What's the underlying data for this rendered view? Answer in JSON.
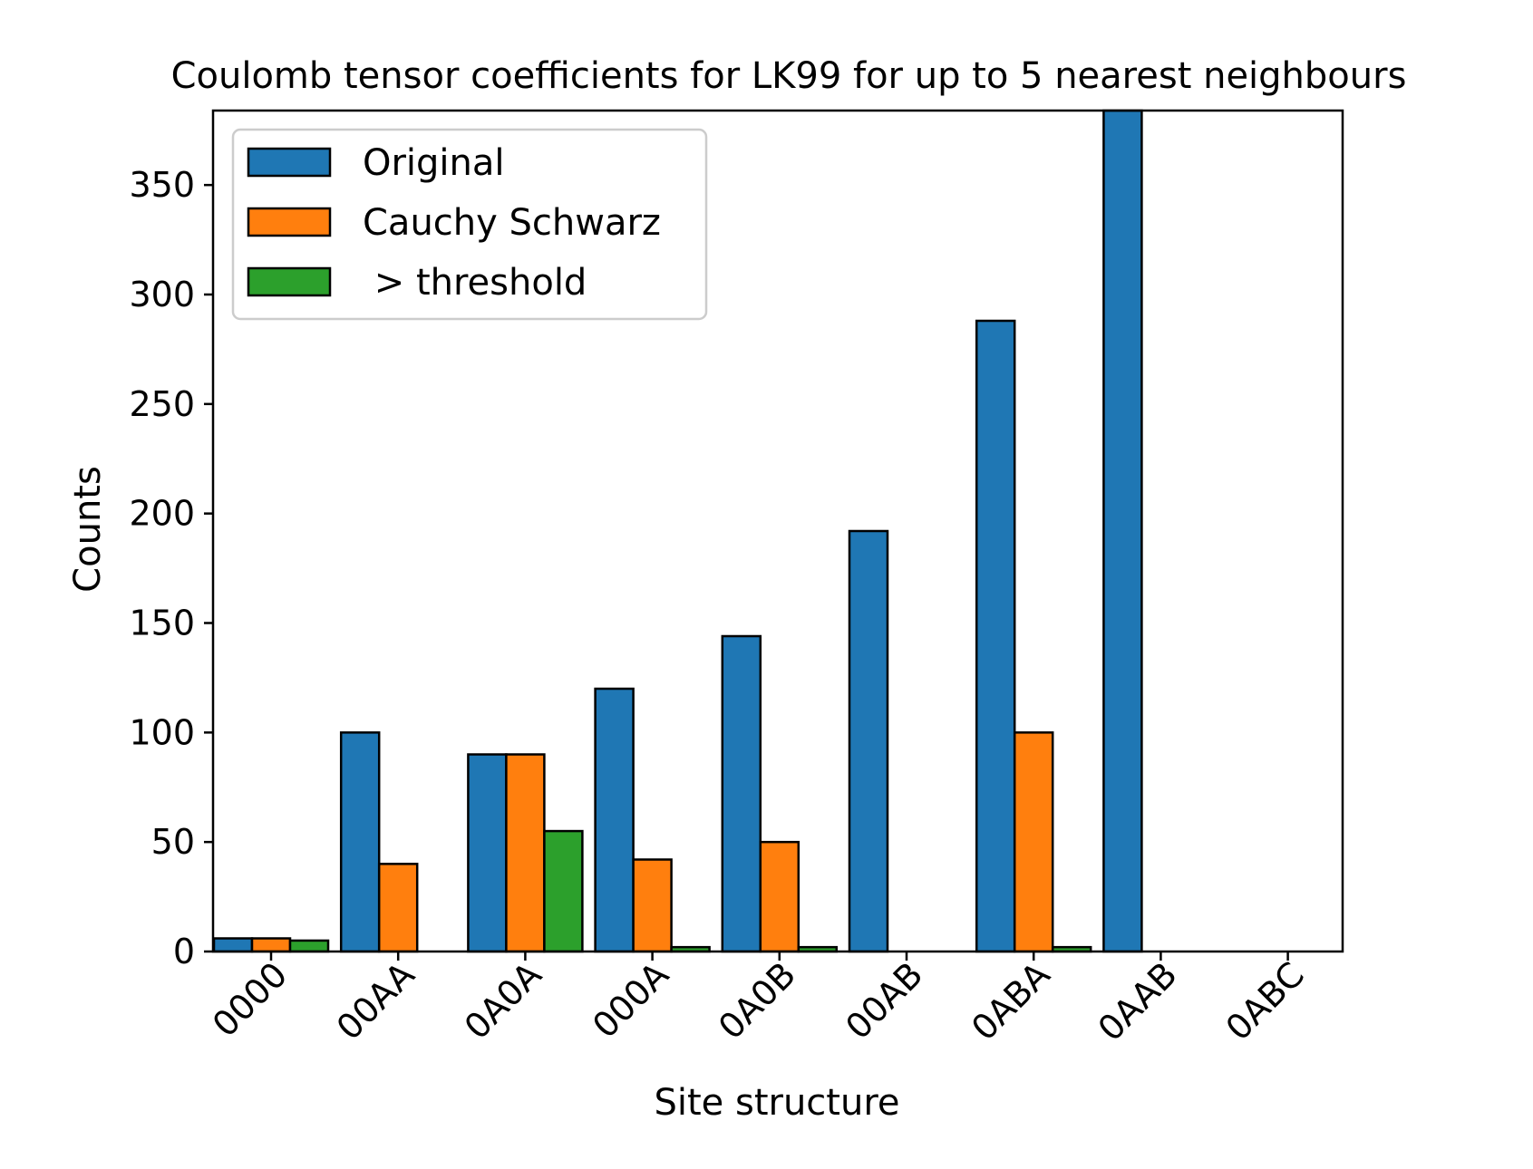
{
  "chart_data": {
    "type": "bar",
    "title": "Coulomb tensor coefficients for LK99 for up to 5 nearest neighbours",
    "xlabel": "Site structure",
    "ylabel": "Counts",
    "categories": [
      "0000",
      "00AA",
      "0A0A",
      "000A",
      "0A0B",
      "00AB",
      "0ABA",
      "0AAB",
      "0ABC"
    ],
    "ylim": [
      0,
      384
    ],
    "yticks": [
      0,
      50,
      100,
      150,
      200,
      250,
      300,
      350
    ],
    "grid": false,
    "legend_position": "top-left",
    "series": [
      {
        "name": "Original",
        "color": "#1f77b4",
        "values": [
          6,
          100,
          90,
          120,
          144,
          192,
          288,
          384,
          0
        ]
      },
      {
        "name": "Cauchy Schwarz",
        "color": "#ff7f0e",
        "values": [
          6,
          40,
          90,
          42,
          50,
          0,
          100,
          0,
          0
        ]
      },
      {
        "name": " > threshold",
        "color": "#2ca02c",
        "values": [
          5,
          0,
          55,
          2,
          2,
          0,
          2,
          0,
          0
        ]
      }
    ]
  }
}
